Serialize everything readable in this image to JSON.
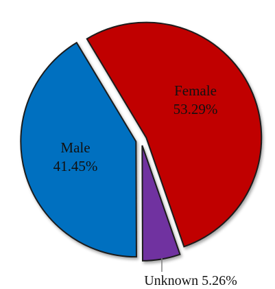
{
  "chart_data": {
    "type": "pie",
    "slices": [
      {
        "name": "Female",
        "percent_label": "53.29%",
        "value": 53.29,
        "color": "#c00000"
      },
      {
        "name": "Unknown",
        "percent_label": "5.26%",
        "value": 5.26,
        "color": "#7030a0"
      },
      {
        "name": "Male",
        "percent_label": "41.45%",
        "value": 41.45,
        "color": "#0070c0"
      }
    ],
    "outside_label": "Unknown 5.26%",
    "exploded": true
  }
}
